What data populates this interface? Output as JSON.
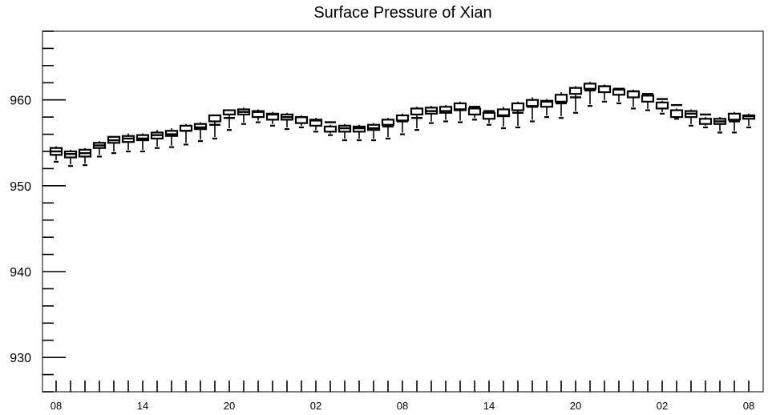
{
  "chart_data": {
    "type": "box",
    "title": "Surface Pressure of Xian",
    "xlabel": "",
    "ylabel": "",
    "ylim": [
      926,
      968
    ],
    "y_ticks": [
      930,
      940,
      950,
      960
    ],
    "x_tick_labels": [
      "08",
      "14",
      "20",
      "02",
      "08",
      "14",
      "20",
      "02",
      "08"
    ],
    "x_tick_label_indices": [
      0,
      6,
      12,
      18,
      24,
      30,
      36,
      42,
      48
    ],
    "series": [
      {
        "whisker_low": [
          952.8,
          952.3,
          952.4,
          953.4,
          953.8,
          954.0,
          954.0,
          954.4,
          954.5,
          954.8,
          955.2,
          955.5,
          956.5,
          957.2,
          957.4,
          957.0,
          956.6,
          956.8,
          956.3,
          955.9,
          955.3,
          955.3,
          955.3,
          955.5,
          956.0,
          956.5,
          957.3,
          957.5,
          957.4,
          957.7,
          957.1,
          956.7,
          956.8,
          957.5,
          958.0,
          957.9,
          958.5,
          959.3,
          959.8,
          959.6,
          959.0,
          958.8,
          958.4,
          957.8,
          957.0,
          956.8,
          956.2,
          956.2,
          956.8
        ],
        "q1": [
          953.6,
          953.3,
          953.4,
          954.4,
          955.0,
          955.1,
          955.3,
          955.5,
          955.8,
          956.4,
          956.6,
          957.5,
          958.3,
          958.3,
          958.0,
          957.7,
          957.7,
          957.3,
          957.0,
          956.3,
          956.3,
          956.3,
          956.5,
          957.1,
          957.6,
          958.3,
          958.4,
          958.5,
          958.8,
          958.3,
          957.8,
          958.1,
          958.8,
          959.3,
          959.2,
          959.8,
          960.7,
          961.3,
          960.9,
          960.6,
          960.3,
          959.8,
          959.0,
          958.0,
          958.0,
          957.2,
          957.2,
          957.7,
          957.8
        ],
        "median": [
          954.0,
          953.7,
          953.8,
          954.7,
          955.3,
          955.5,
          955.5,
          955.9,
          956.0,
          956.4,
          956.8,
          957.1,
          957.9,
          958.6,
          958.6,
          958.3,
          958.0,
          958.0,
          957.6,
          957.4,
          956.7,
          956.7,
          956.7,
          956.9,
          957.5,
          957.9,
          958.7,
          958.7,
          958.9,
          959.2,
          958.7,
          958.2,
          958.5,
          959.2,
          959.8,
          959.6,
          960.3,
          961.1,
          961.6,
          961.3,
          961.0,
          960.7,
          960.1,
          959.4,
          958.4,
          958.3,
          957.5,
          957.5,
          958.1
        ],
        "q3": [
          954.4,
          954.0,
          954.2,
          955.0,
          955.7,
          955.8,
          955.9,
          956.2,
          956.4,
          957.0,
          957.2,
          958.2,
          958.8,
          958.9,
          958.7,
          958.4,
          958.3,
          958.0,
          957.7,
          956.9,
          957.0,
          956.9,
          957.1,
          957.7,
          958.2,
          959.0,
          959.1,
          959.2,
          959.6,
          959.0,
          958.5,
          958.9,
          959.6,
          960.0,
          959.9,
          960.6,
          961.4,
          961.9,
          961.6,
          961.2,
          961.0,
          960.5,
          959.7,
          958.8,
          958.7,
          957.8,
          957.8,
          958.4,
          958.2
        ],
        "whisker_high": [
          954.6,
          954.2,
          954.4,
          955.2,
          955.8,
          956.1,
          956.1,
          956.5,
          956.7,
          957.2,
          957.4,
          958.3,
          958.9,
          959.1,
          958.9,
          958.6,
          958.5,
          958.2,
          957.9,
          957.1,
          957.2,
          957.1,
          957.3,
          957.9,
          958.4,
          959.2,
          959.3,
          959.4,
          959.8,
          959.2,
          958.8,
          959.2,
          959.8,
          960.3,
          960.1,
          960.9,
          961.6,
          962.1,
          961.8,
          961.4,
          961.2,
          960.7,
          959.9,
          959.0,
          958.9,
          958.0,
          958.0,
          958.6,
          958.4
        ]
      }
    ],
    "grid": false,
    "legend": "none"
  }
}
